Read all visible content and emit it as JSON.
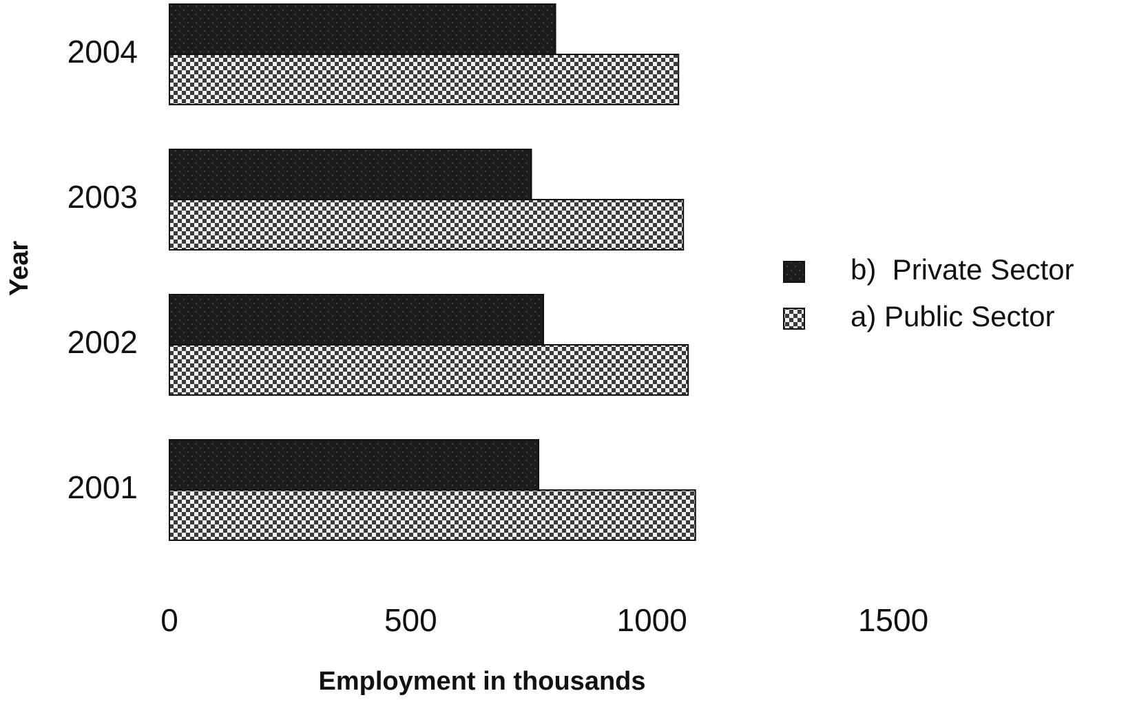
{
  "chart_data": {
    "type": "bar",
    "orientation": "horizontal",
    "categories": [
      "2001",
      "2002",
      "2003",
      "2004"
    ],
    "series": [
      {
        "name": "b)  Private Sector",
        "color": "#1c1c1c",
        "values": [
          765,
          775,
          750,
          800
        ]
      },
      {
        "name": "a) Public Sector",
        "color": "#3a3a3a",
        "values": [
          1090,
          1075,
          1065,
          1055
        ]
      }
    ],
    "xlabel": "Employment in thousands",
    "ylabel": "Year",
    "xlim": [
      0,
      1500
    ],
    "xticks": [
      0,
      500,
      1000,
      1500
    ],
    "grid": false,
    "legend": "right"
  }
}
